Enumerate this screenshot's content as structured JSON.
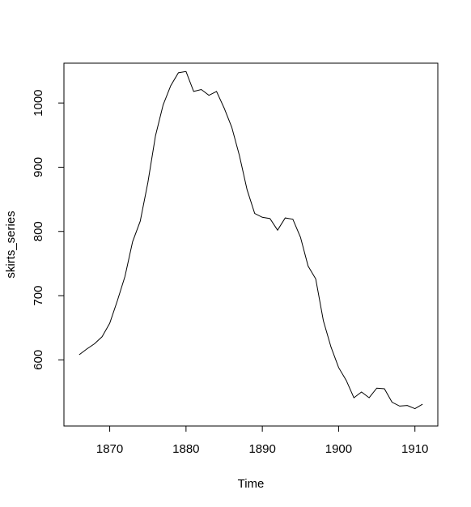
{
  "chart_data": {
    "type": "line",
    "title": "",
    "xlabel": "Time",
    "ylabel": "skirts_series",
    "xlim": [
      1864,
      1913
    ],
    "ylim": [
      497,
      1062
    ],
    "xticks": [
      1870,
      1880,
      1890,
      1900,
      1910
    ],
    "yticks": [
      600,
      700,
      800,
      900,
      1000
    ],
    "grid": false,
    "legend": "none",
    "series": [
      {
        "x": [
          1866,
          1867,
          1868,
          1869,
          1870,
          1871,
          1872,
          1873,
          1874,
          1875,
          1876,
          1877,
          1878,
          1879,
          1880,
          1881,
          1882,
          1883,
          1884,
          1885,
          1886,
          1887,
          1888,
          1889,
          1890,
          1891,
          1892,
          1893,
          1894,
          1895,
          1896,
          1897,
          1898,
          1899,
          1900,
          1901,
          1902,
          1903,
          1904,
          1905,
          1906,
          1907,
          1908,
          1909,
          1910,
          1911
        ],
        "values": [
          608,
          617,
          625,
          636,
          657,
          692,
          730,
          784,
          816,
          876,
          949,
          997,
          1027,
          1047,
          1049,
          1018,
          1021,
          1012,
          1018,
          992,
          962,
          918,
          865,
          828,
          822,
          820,
          802,
          821,
          819,
          791,
          746,
          726,
          661,
          620,
          588,
          568,
          541,
          550,
          541,
          556,
          555,
          534,
          528,
          529,
          524,
          531
        ]
      }
    ],
    "color": "#000000"
  }
}
